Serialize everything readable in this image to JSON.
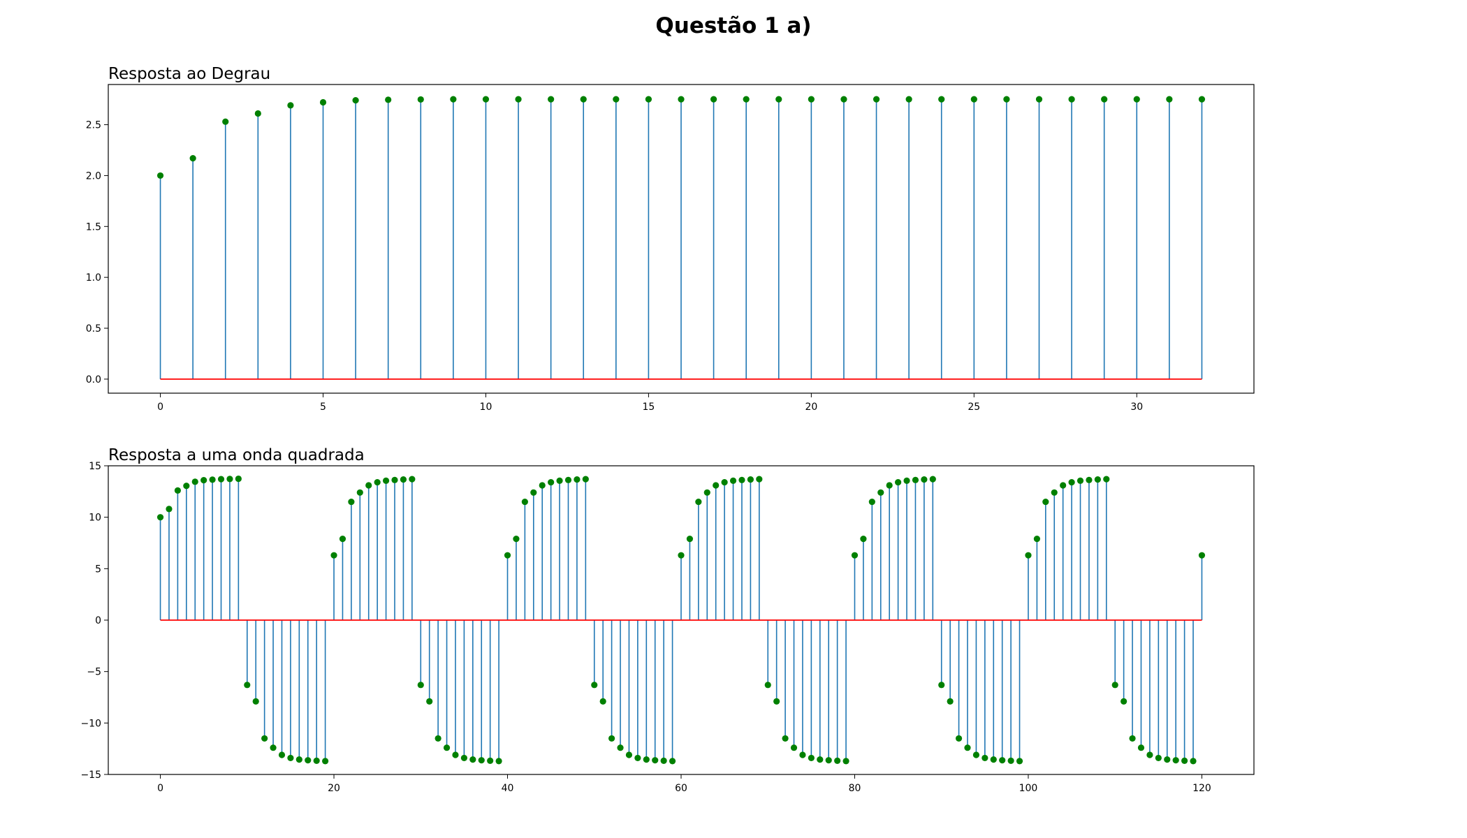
{
  "figure": {
    "title": "Questão 1 a)"
  },
  "colors": {
    "stem": "#1f77b4",
    "marker": "#008000",
    "baseline": "#ff0000",
    "axes": "#000000"
  },
  "chart_data": [
    {
      "type": "stem",
      "title": "Resposta ao Degrau",
      "xlabel": "",
      "ylabel": "",
      "xlim": [
        -1.6,
        33.6
      ],
      "ylim": [
        -0.138,
        2.895
      ],
      "xticks": [
        0,
        5,
        10,
        15,
        20,
        25,
        30
      ],
      "xtick_labels": [
        "0",
        "5",
        "10",
        "15",
        "20",
        "25",
        "30"
      ],
      "yticks": [
        0.0,
        0.5,
        1.0,
        1.5,
        2.0,
        2.5
      ],
      "ytick_labels": [
        "0.0",
        "0.5",
        "1.0",
        "1.5",
        "2.0",
        "2.5"
      ],
      "grid": false,
      "baseline": 0,
      "x": [
        0,
        1,
        2,
        3,
        4,
        5,
        6,
        7,
        8,
        9,
        10,
        11,
        12,
        13,
        14,
        15,
        16,
        17,
        18,
        19,
        20,
        21,
        22,
        23,
        24,
        25,
        26,
        27,
        28,
        29,
        30,
        31,
        32
      ],
      "y": [
        2.0,
        2.17,
        2.53,
        2.61,
        2.69,
        2.72,
        2.74,
        2.745,
        2.748,
        2.75,
        2.75,
        2.75,
        2.75,
        2.75,
        2.75,
        2.75,
        2.75,
        2.75,
        2.75,
        2.75,
        2.75,
        2.75,
        2.75,
        2.75,
        2.75,
        2.75,
        2.75,
        2.75,
        2.75,
        2.75,
        2.75,
        2.75,
        2.75
      ]
    },
    {
      "type": "stem",
      "title": "Resposta a uma onda quadrada",
      "xlabel": "",
      "ylabel": "",
      "xlim": [
        -6.0,
        126.0
      ],
      "ylim": [
        -15.0,
        15.0
      ],
      "xticks": [
        0,
        20,
        40,
        60,
        80,
        100,
        120
      ],
      "xtick_labels": [
        "0",
        "20",
        "40",
        "60",
        "80",
        "100",
        "120"
      ],
      "yticks": [
        -15,
        -10,
        -5,
        0,
        5,
        10,
        15
      ],
      "ytick_labels": [
        "−15",
        "−10",
        "−5",
        "0",
        "5",
        "10",
        "15"
      ],
      "grid": false,
      "baseline": 0,
      "x": [
        0,
        1,
        2,
        3,
        4,
        5,
        6,
        7,
        8,
        9,
        10,
        11,
        12,
        13,
        14,
        15,
        16,
        17,
        18,
        19,
        20,
        21,
        22,
        23,
        24,
        25,
        26,
        27,
        28,
        29,
        30,
        31,
        32,
        33,
        34,
        35,
        36,
        37,
        38,
        39,
        40,
        41,
        42,
        43,
        44,
        45,
        46,
        47,
        48,
        49,
        50,
        51,
        52,
        53,
        54,
        55,
        56,
        57,
        58,
        59,
        60,
        61,
        62,
        63,
        64,
        65,
        66,
        67,
        68,
        69,
        70,
        71,
        72,
        73,
        74,
        75,
        76,
        77,
        78,
        79,
        80,
        81,
        82,
        83,
        84,
        85,
        86,
        87,
        88,
        89,
        90,
        91,
        92,
        93,
        94,
        95,
        96,
        97,
        98,
        99,
        100,
        101,
        102,
        103,
        104,
        105,
        106,
        107,
        108,
        109,
        110,
        111,
        112,
        113,
        114,
        115,
        116,
        117,
        118,
        119,
        120
      ],
      "y": [
        10.0,
        10.8,
        12.6,
        13.05,
        13.45,
        13.6,
        13.65,
        13.7,
        13.72,
        13.74,
        -6.3,
        -7.9,
        -11.5,
        -12.4,
        -13.1,
        -13.4,
        -13.55,
        -13.62,
        -13.67,
        -13.7,
        6.3,
        7.9,
        11.5,
        12.4,
        13.1,
        13.4,
        13.55,
        13.62,
        13.67,
        13.7,
        -6.3,
        -7.9,
        -11.5,
        -12.4,
        -13.1,
        -13.4,
        -13.55,
        -13.62,
        -13.67,
        -13.7,
        6.3,
        7.9,
        11.5,
        12.4,
        13.1,
        13.4,
        13.55,
        13.62,
        13.67,
        13.7,
        -6.3,
        -7.9,
        -11.5,
        -12.4,
        -13.1,
        -13.4,
        -13.55,
        -13.62,
        -13.67,
        -13.7,
        6.3,
        7.9,
        11.5,
        12.4,
        13.1,
        13.4,
        13.55,
        13.62,
        13.67,
        13.7,
        -6.3,
        -7.9,
        -11.5,
        -12.4,
        -13.1,
        -13.4,
        -13.55,
        -13.62,
        -13.67,
        -13.7,
        6.3,
        7.9,
        11.5,
        12.4,
        13.1,
        13.4,
        13.55,
        13.62,
        13.67,
        13.7,
        -6.3,
        -7.9,
        -11.5,
        -12.4,
        -13.1,
        -13.4,
        -13.55,
        -13.62,
        -13.67,
        -13.7,
        6.3,
        7.9,
        11.5,
        12.4,
        13.1,
        13.4,
        13.55,
        13.62,
        13.67,
        13.7,
        -6.3,
        -7.9,
        -11.5,
        -12.4,
        -13.1,
        -13.4,
        -13.55,
        -13.62,
        -13.67,
        -13.7,
        6.3
      ]
    }
  ]
}
